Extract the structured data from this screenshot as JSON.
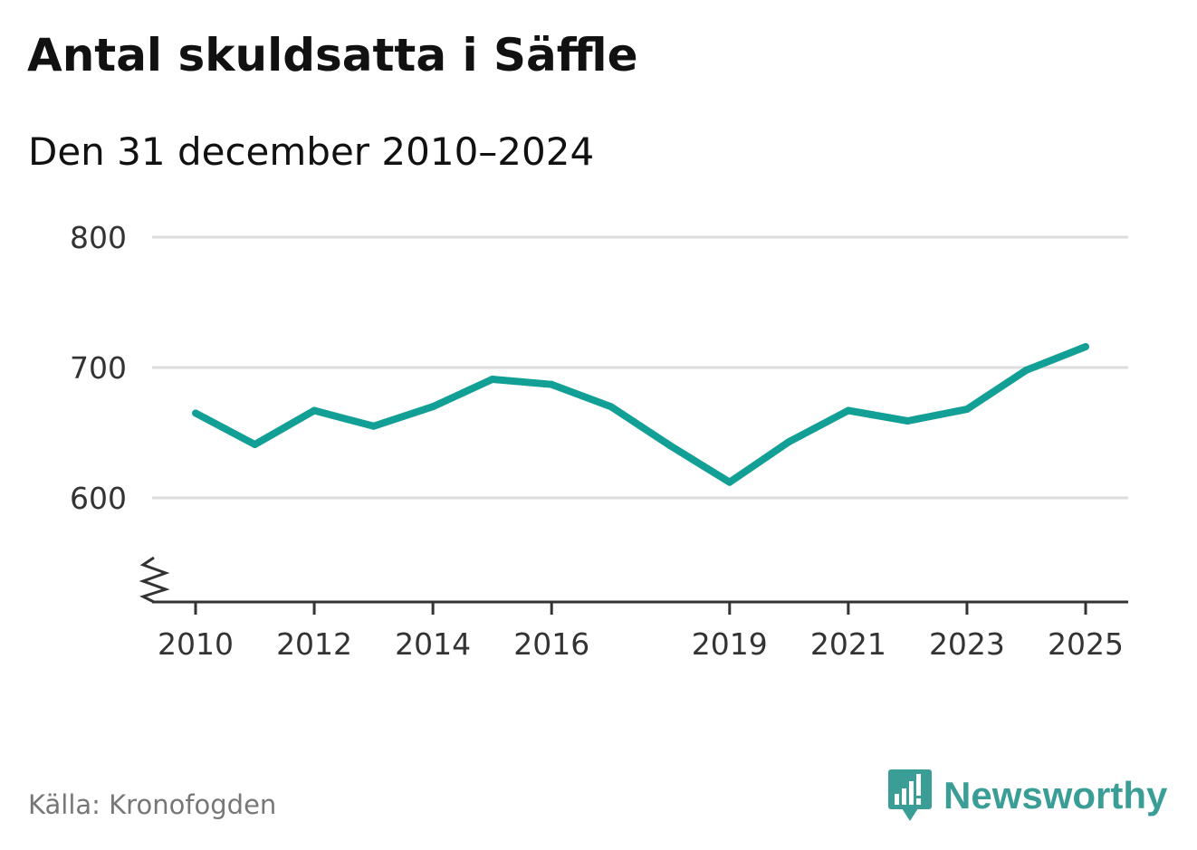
{
  "title": "Antal skuldsatta i Säffle",
  "subtitle": "Den 31 december 2010–2024",
  "source": "Källa: Kronofogden",
  "brand": {
    "name": "Newsworthy",
    "icon": "bar-chart-speech-bubble-icon",
    "color": "#3a9e96"
  },
  "colors": {
    "line": "#12a096",
    "grid": "#dddddd",
    "axis": "#333333"
  },
  "chart_data": {
    "type": "line",
    "title": "Antal skuldsatta i Säffle",
    "subtitle": "Den 31 december 2010–2024",
    "xlabel": "",
    "ylabel": "",
    "x": [
      2010,
      2011,
      2012,
      2013,
      2014,
      2015,
      2016,
      2017,
      2018,
      2019,
      2020,
      2021,
      2022,
      2023,
      2024,
      2025
    ],
    "series": [
      {
        "name": "Antal skuldsatta",
        "values": [
          665,
          641,
          667,
          655,
          670,
          691,
          687,
          670,
          640,
          612,
          643,
          667,
          659,
          668,
          698,
          716
        ]
      }
    ],
    "xticks": [
      "2010",
      "2012",
      "2014",
      "2016",
      "2019",
      "2021",
      "2023",
      "2025"
    ],
    "yticks": [
      "600",
      "700",
      "800"
    ],
    "xlim": [
      2010,
      2025
    ],
    "ylim": [
      520,
      800
    ],
    "axis_break": true,
    "grid": true,
    "legend": "none"
  }
}
